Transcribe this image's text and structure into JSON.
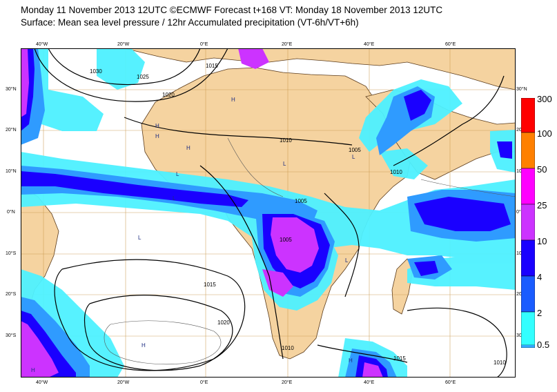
{
  "header": {
    "line1": "Monday 11 November 2013 12UTC ©ECMWF Forecast t+168 VT: Monday 18 November 2013 12UTC",
    "line2": "Surface: Mean sea level pressure / 12hr Accumulated precipitation (VT-6h/VT+6h)"
  },
  "map": {
    "lon_labels": [
      "40°W",
      "20°W",
      "0°E",
      "20°E",
      "40°E",
      "60°E"
    ],
    "lat_labels": [
      "30°N",
      "20°N",
      "10°N",
      "0°N",
      "10°S",
      "20°S",
      "30°S"
    ],
    "right_lat_labels": [
      "30°N",
      "20°N",
      "10°N",
      "0°N",
      "10°S",
      "20°S",
      "30°"
    ],
    "isobars": [
      "1030",
      "1025",
      "1020",
      "1015",
      "1010",
      "1005",
      "1005",
      "1005",
      "1010",
      "1015",
      "1020",
      "1010",
      "1015",
      "1010"
    ],
    "pressure_centers": [
      "H",
      "H",
      "H",
      "H",
      "H",
      "L",
      "L",
      "L",
      "L",
      "H",
      "H",
      "H",
      "L",
      "L"
    ]
  },
  "legend": {
    "levels": [
      "300",
      "100",
      "50",
      "25",
      "10",
      "4",
      "2",
      "0.5"
    ],
    "colors": [
      "#ff0000",
      "#ff8000",
      "#ff00ff",
      "#cc33ff",
      "#1a00ff",
      "#1a5cff",
      "#33aaff",
      "#33ffff"
    ]
  },
  "colors": {
    "land": "#f5d3a0",
    "ocean": "#ffffff",
    "coast": "#5a3a1a",
    "grid": "#c8964a",
    "light_precip": "#4ef1ff",
    "medium_precip": "#2f9bff",
    "heavy_precip": "#1a00ff",
    "very_heavy_precip": "#cc33ff"
  }
}
